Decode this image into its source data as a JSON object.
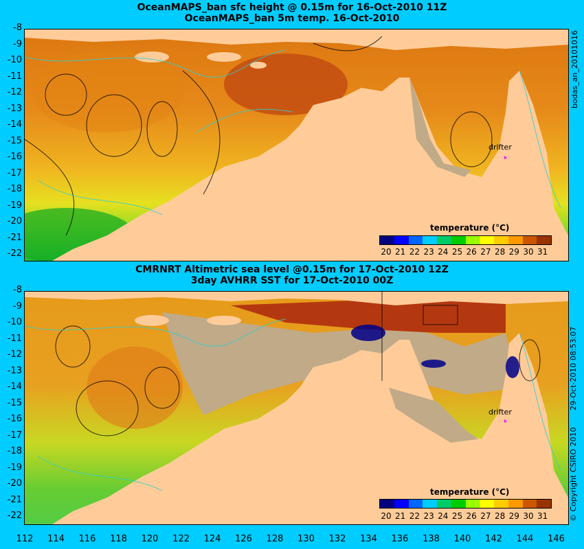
{
  "top_panel": {
    "title_line1": "OceanMAPS_ban sfc height @ 0.15m for 16-Oct-2010 11Z",
    "title_line2": "OceanMAPS_ban 5m temp. 16-Oct-2010",
    "side_label": "bodas_an_20101016",
    "drifter_label": "drifter",
    "colorbar_title": "temperature (°C)"
  },
  "bottom_panel": {
    "title_line1": "CMRNRT Altimetric sea level  @0.15m  for 17-Oct-2010 12Z",
    "title_line2": "3day AVHRR SST for 17-Oct-2010 00Z",
    "side_label": "29-Oct-2010 08:53:07",
    "drifter_label": "drifter",
    "colorbar_title": "temperature (°C)"
  },
  "copyright": "© Copyright CSIRO 2010",
  "y_ticks": [
    "-8",
    "-9",
    "-10",
    "-11",
    "-12",
    "-13",
    "-14",
    "-15",
    "-16",
    "-17",
    "-18",
    "-19",
    "-20",
    "-21",
    "-22"
  ],
  "x_ticks": [
    "112",
    "114",
    "116",
    "118",
    "120",
    "122",
    "124",
    "126",
    "128",
    "130",
    "132",
    "134",
    "136",
    "138",
    "140",
    "142",
    "144",
    "146"
  ],
  "colorbar_ticks": [
    "20",
    "21",
    "22",
    "23",
    "24",
    "25",
    "26",
    "27",
    "28",
    "29",
    "30",
    "31"
  ],
  "colorbar_colors": [
    "#000080",
    "#0000ff",
    "#0066ff",
    "#00ccff",
    "#00cc66",
    "#00cc00",
    "#99ff00",
    "#ffff00",
    "#ffcc00",
    "#ff9900",
    "#cc5500",
    "#993300"
  ],
  "colors": {
    "land": "#ffcc99",
    "cloud": "#c0aa88",
    "background": "#00ccff",
    "contour_cyan": "#33cccc",
    "drifter": "#ff00ff"
  },
  "map_extent": {
    "lon": [
      112,
      146.8
    ],
    "lat": [
      -22.4,
      -8
    ]
  }
}
